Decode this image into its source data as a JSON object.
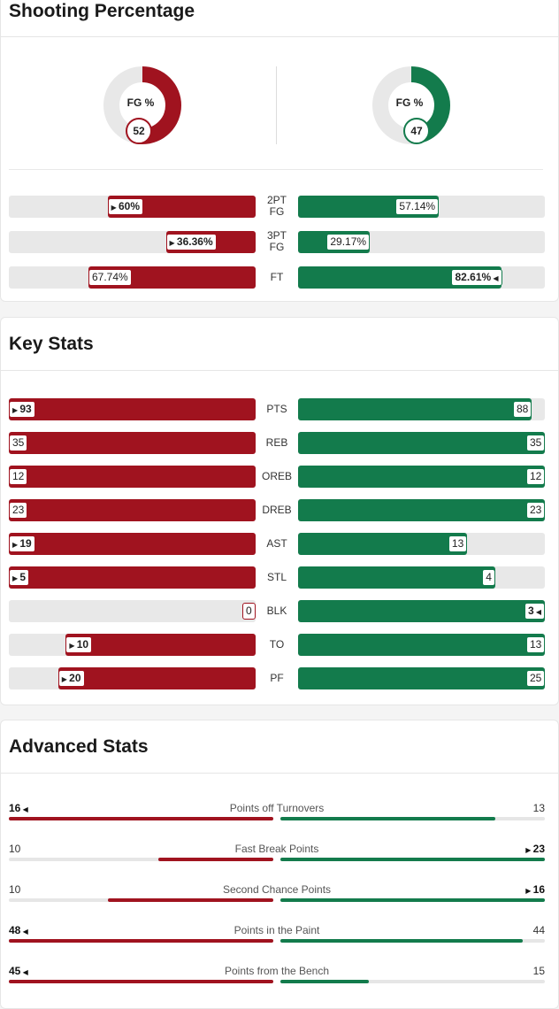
{
  "colors": {
    "home": "#a0131f",
    "away": "#137b4c",
    "track": "#e8e8e8"
  },
  "shooting": {
    "title": "Shooting Percentage",
    "home_fg": {
      "label": "FG %",
      "value": "52",
      "pct": 52
    },
    "away_fg": {
      "label": "FG %",
      "value": "47",
      "pct": 47
    },
    "rows": [
      {
        "cat": [
          "2PT",
          "FG"
        ],
        "home": "60%",
        "away": "57.14%",
        "home_pct": 60,
        "away_pct": 57.14,
        "leader": "home"
      },
      {
        "cat": [
          "3PT",
          "FG"
        ],
        "home": "36.36%",
        "away": "29.17%",
        "home_pct": 36.36,
        "away_pct": 29.17,
        "leader": "home"
      },
      {
        "cat": [
          "FT"
        ],
        "home": "67.74%",
        "away": "82.61%",
        "home_pct": 67.74,
        "away_pct": 82.61,
        "leader": "away"
      }
    ]
  },
  "key_stats": {
    "title": "Key Stats",
    "rows": [
      {
        "cat": "PTS",
        "home": "93",
        "away": "88",
        "leader": "home"
      },
      {
        "cat": "REB",
        "home": "35",
        "away": "35",
        "leader": "tie"
      },
      {
        "cat": "OREB",
        "home": "12",
        "away": "12",
        "leader": "tie"
      },
      {
        "cat": "DREB",
        "home": "23",
        "away": "23",
        "leader": "tie"
      },
      {
        "cat": "AST",
        "home": "19",
        "away": "13",
        "leader": "home"
      },
      {
        "cat": "STL",
        "home": "5",
        "away": "4",
        "leader": "home"
      },
      {
        "cat": "BLK",
        "home": "0",
        "away": "3",
        "leader": "away"
      },
      {
        "cat": "TO",
        "home": "10",
        "away": "13",
        "leader": "home"
      },
      {
        "cat": "PF",
        "home": "20",
        "away": "25",
        "leader": "home"
      }
    ]
  },
  "advanced": {
    "title": "Advanced Stats",
    "rows": [
      {
        "cat": "Points off Turnovers",
        "home": "16",
        "away": "13",
        "leader": "home"
      },
      {
        "cat": "Fast Break Points",
        "home": "10",
        "away": "23",
        "leader": "away"
      },
      {
        "cat": "Second Chance Points",
        "home": "10",
        "away": "16",
        "leader": "away"
      },
      {
        "cat": "Points in the Paint",
        "home": "48",
        "away": "44",
        "leader": "home"
      },
      {
        "cat": "Points from the Bench",
        "home": "45",
        "away": "15",
        "leader": "home"
      }
    ]
  }
}
